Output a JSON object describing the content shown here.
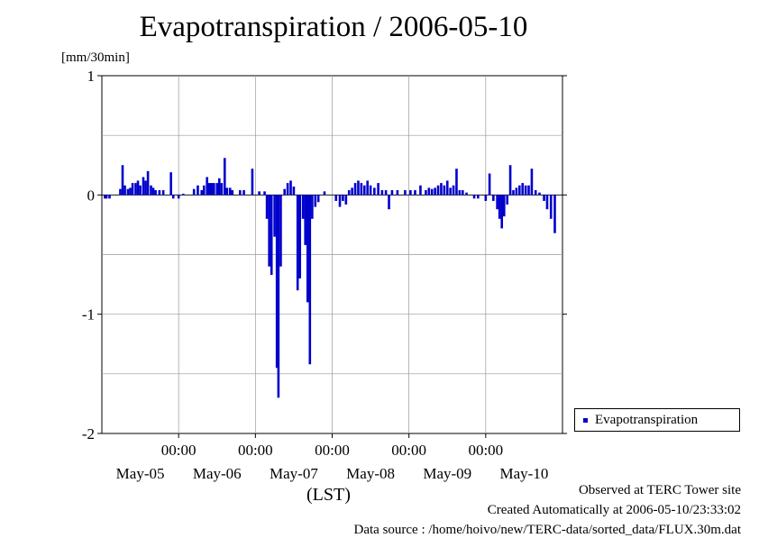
{
  "chart_data": {
    "type": "bar",
    "title": "Evapotranspiration / 2006-05-10",
    "ylabel": "[mm/30min]",
    "xlabel": "(LST)",
    "ylim": [
      -2,
      1
    ],
    "yticks": [
      1,
      0,
      -1,
      -2
    ],
    "ytick_labels": [
      "1",
      "0",
      "-1",
      "-2"
    ],
    "xlim_days": [
      0,
      6
    ],
    "xticks": [
      {
        "day": 1,
        "time": "00:00"
      },
      {
        "day": 2,
        "time": "00:00"
      },
      {
        "day": 3,
        "time": "00:00"
      },
      {
        "day": 4,
        "time": "00:00"
      },
      {
        "day": 5,
        "time": "00:00"
      }
    ],
    "date_labels": [
      "May-05",
      "May-06",
      "May-07",
      "May-08",
      "May-09",
      "May-10"
    ],
    "grid": true,
    "legend_position": "right",
    "series": [
      {
        "name": "Evapotranspiration",
        "color": "#0000cc",
        "points": [
          [
            0.04,
            -0.03
          ],
          [
            0.06,
            -0.03
          ],
          [
            0.1,
            -0.03
          ],
          [
            0.24,
            0.05
          ],
          [
            0.27,
            0.25
          ],
          [
            0.3,
            0.08
          ],
          [
            0.34,
            0.05
          ],
          [
            0.37,
            0.06
          ],
          [
            0.4,
            0.1
          ],
          [
            0.44,
            0.1
          ],
          [
            0.47,
            0.12
          ],
          [
            0.5,
            0.08
          ],
          [
            0.54,
            0.15
          ],
          [
            0.57,
            0.12
          ],
          [
            0.6,
            0.2
          ],
          [
            0.64,
            0.08
          ],
          [
            0.67,
            0.06
          ],
          [
            0.7,
            0.04
          ],
          [
            0.75,
            0.04
          ],
          [
            0.8,
            0.04
          ],
          [
            0.9,
            0.19
          ],
          [
            0.93,
            -0.03
          ],
          [
            1.0,
            -0.03
          ],
          [
            1.06,
            0.01
          ],
          [
            1.2,
            0.05
          ],
          [
            1.25,
            0.08
          ],
          [
            1.3,
            0.04
          ],
          [
            1.33,
            0.08
          ],
          [
            1.37,
            0.15
          ],
          [
            1.4,
            0.1
          ],
          [
            1.43,
            0.1
          ],
          [
            1.46,
            0.1
          ],
          [
            1.5,
            0.1
          ],
          [
            1.53,
            0.14
          ],
          [
            1.56,
            0.1
          ],
          [
            1.6,
            0.31
          ],
          [
            1.63,
            0.06
          ],
          [
            1.67,
            0.06
          ],
          [
            1.7,
            0.04
          ],
          [
            1.8,
            0.04
          ],
          [
            1.85,
            0.04
          ],
          [
            1.96,
            0.22
          ],
          [
            2.05,
            0.03
          ],
          [
            2.12,
            0.03
          ],
          [
            2.15,
            -0.2
          ],
          [
            2.18,
            -0.6
          ],
          [
            2.21,
            -0.67
          ],
          [
            2.25,
            -0.35
          ],
          [
            2.28,
            -1.45
          ],
          [
            2.3,
            -1.7
          ],
          [
            2.33,
            -0.6
          ],
          [
            2.38,
            0.05
          ],
          [
            2.42,
            0.1
          ],
          [
            2.46,
            0.12
          ],
          [
            2.5,
            0.07
          ],
          [
            2.55,
            -0.8
          ],
          [
            2.58,
            -0.7
          ],
          [
            2.62,
            -0.2
          ],
          [
            2.65,
            -0.42
          ],
          [
            2.68,
            -0.9
          ],
          [
            2.71,
            -1.42
          ],
          [
            2.74,
            -0.2
          ],
          [
            2.78,
            -0.1
          ],
          [
            2.82,
            -0.06
          ],
          [
            2.9,
            0.03
          ],
          [
            3.05,
            -0.05
          ],
          [
            3.1,
            -0.1
          ],
          [
            3.14,
            -0.05
          ],
          [
            3.18,
            -0.08
          ],
          [
            3.22,
            0.04
          ],
          [
            3.26,
            0.06
          ],
          [
            3.3,
            0.1
          ],
          [
            3.34,
            0.12
          ],
          [
            3.38,
            0.1
          ],
          [
            3.42,
            0.08
          ],
          [
            3.46,
            0.12
          ],
          [
            3.5,
            0.08
          ],
          [
            3.55,
            0.06
          ],
          [
            3.6,
            0.1
          ],
          [
            3.65,
            0.04
          ],
          [
            3.7,
            0.04
          ],
          [
            3.74,
            -0.12
          ],
          [
            3.78,
            0.04
          ],
          [
            3.85,
            0.04
          ],
          [
            3.95,
            0.04
          ],
          [
            4.02,
            0.04
          ],
          [
            4.08,
            0.04
          ],
          [
            4.15,
            0.08
          ],
          [
            4.22,
            0.04
          ],
          [
            4.26,
            0.06
          ],
          [
            4.3,
            0.05
          ],
          [
            4.34,
            0.06
          ],
          [
            4.38,
            0.08
          ],
          [
            4.42,
            0.1
          ],
          [
            4.46,
            0.08
          ],
          [
            4.5,
            0.12
          ],
          [
            4.54,
            0.06
          ],
          [
            4.58,
            0.08
          ],
          [
            4.62,
            0.22
          ],
          [
            4.66,
            0.04
          ],
          [
            4.7,
            0.04
          ],
          [
            4.75,
            0.02
          ],
          [
            4.85,
            -0.03
          ],
          [
            4.9,
            -0.03
          ],
          [
            5.0,
            -0.05
          ],
          [
            5.05,
            0.18
          ],
          [
            5.1,
            -0.05
          ],
          [
            5.15,
            -0.12
          ],
          [
            5.18,
            -0.2
          ],
          [
            5.21,
            -0.28
          ],
          [
            5.24,
            -0.18
          ],
          [
            5.28,
            -0.08
          ],
          [
            5.32,
            0.25
          ],
          [
            5.36,
            0.04
          ],
          [
            5.4,
            0.06
          ],
          [
            5.44,
            0.08
          ],
          [
            5.48,
            0.1
          ],
          [
            5.52,
            0.08
          ],
          [
            5.56,
            0.08
          ],
          [
            5.6,
            0.22
          ],
          [
            5.65,
            0.04
          ],
          [
            5.7,
            0.02
          ],
          [
            5.76,
            -0.05
          ],
          [
            5.8,
            -0.12
          ],
          [
            5.85,
            -0.2
          ],
          [
            5.9,
            -0.32
          ]
        ]
      }
    ]
  },
  "footer": {
    "observed": "Observed at TERC Tower site",
    "created": "Created Automatically at 2006-05-10/23:33:02",
    "source": "Data source : /home/hoivo/new/TERC-data/sorted_data/FLUX.30m.dat"
  }
}
